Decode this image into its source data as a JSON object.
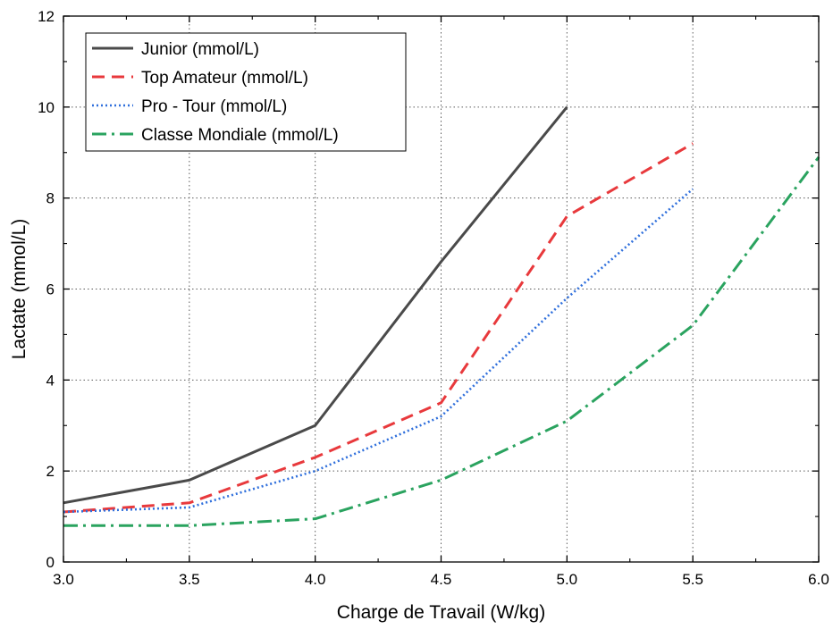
{
  "chart_data": {
    "type": "line",
    "title": "",
    "xlabel": "Charge de Travail (W/kg)",
    "ylabel": "Lactate (mmol/L)",
    "xlim": [
      3.0,
      6.0
    ],
    "ylim": [
      0,
      12
    ],
    "x_ticks": [
      "3.0",
      "3.5",
      "4.0",
      "4.5",
      "5.0",
      "5.5",
      "6.0"
    ],
    "y_ticks": [
      "0",
      "2",
      "4",
      "6",
      "8",
      "10",
      "12"
    ],
    "grid": true,
    "legend_position": "top-left",
    "series": [
      {
        "name": "Junior (mmol/L)",
        "color": "#4a4a4a",
        "line_style": "solid",
        "x": [
          3.0,
          3.5,
          4.0,
          4.5,
          5.0
        ],
        "y": [
          1.3,
          1.8,
          3.0,
          6.6,
          10.0
        ]
      },
      {
        "name": "Top Amateur (mmol/L)",
        "color": "#e8393c",
        "line_style": "dashed",
        "x": [
          3.0,
          3.5,
          4.0,
          4.5,
          5.0,
          5.5
        ],
        "y": [
          1.1,
          1.3,
          2.3,
          3.5,
          7.6,
          9.2
        ]
      },
      {
        "name": "Pro - Tour (mmol/L)",
        "color": "#2f6fdc",
        "line_style": "dotted",
        "x": [
          3.0,
          3.5,
          4.0,
          4.5,
          5.0,
          5.5
        ],
        "y": [
          1.1,
          1.2,
          2.0,
          3.2,
          5.8,
          8.2
        ]
      },
      {
        "name": "Classe Mondiale (mmol/L)",
        "color": "#2aa35f",
        "line_style": "dashdot",
        "x": [
          3.0,
          3.5,
          4.0,
          4.5,
          5.0,
          5.5,
          6.0
        ],
        "y": [
          0.8,
          0.8,
          0.95,
          1.8,
          3.1,
          5.2,
          8.9
        ]
      }
    ]
  }
}
